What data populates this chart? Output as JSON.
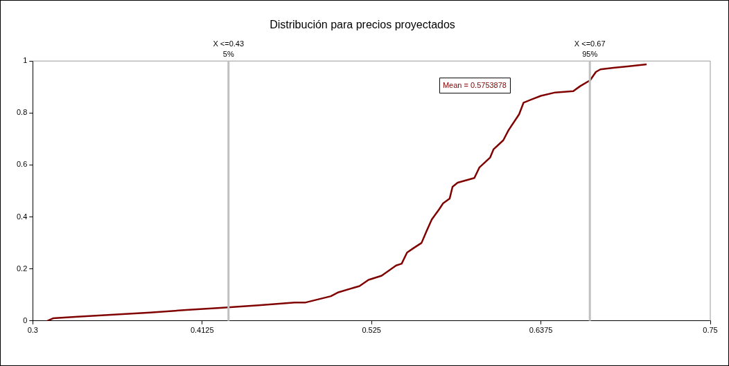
{
  "chart_data": {
    "type": "line",
    "title": "Distribución para precios proyectados",
    "x": [
      0.3096,
      0.3135,
      0.3298,
      0.3538,
      0.3779,
      0.4019,
      0.4245,
      0.45,
      0.474,
      0.4813,
      0.498,
      0.503,
      0.517,
      0.523,
      0.5317,
      0.5413,
      0.545,
      0.5486,
      0.5534,
      0.5582,
      0.5615,
      0.565,
      0.57,
      0.5726,
      0.5769,
      0.5788,
      0.5822,
      0.5933,
      0.5966,
      0.6038,
      0.606,
      0.6125,
      0.616,
      0.623,
      0.626,
      0.6317,
      0.6375,
      0.647,
      0.659,
      0.6635,
      0.6702,
      0.674,
      0.677,
      0.6856,
      0.695,
      0.7077
    ],
    "series": [
      {
        "color": "#800000",
        "values": [
          0,
          0.01,
          0.016,
          0.024,
          0.032,
          0.042,
          0.05,
          0.06,
          0.071,
          0.071,
          0.095,
          0.11,
          0.134,
          0.158,
          0.174,
          0.213,
          0.22,
          0.263,
          0.282,
          0.3,
          0.345,
          0.39,
          0.43,
          0.453,
          0.471,
          0.516,
          0.532,
          0.55,
          0.59,
          0.629,
          0.66,
          0.695,
          0.734,
          0.795,
          0.84,
          0.853,
          0.866,
          0.879,
          0.884,
          0.903,
          0.926,
          0.958,
          0.968,
          0.974,
          0.979,
          0.987
        ]
      }
    ],
    "xlim": [
      0.3,
      0.75
    ],
    "xticks": [
      0.3,
      0.4125,
      0.525,
      0.6375,
      0.75
    ],
    "ylim": [
      0,
      1
    ],
    "yticks": [
      0,
      0.2,
      0.4,
      0.6,
      0.8,
      1
    ],
    "ref_lines": [
      {
        "axis": "x",
        "value": 0.43,
        "label": "X <=0.43\n5%",
        "color": "#c0c0c0"
      },
      {
        "axis": "x",
        "value": 0.67,
        "label": "X <=0.67\n95%",
        "color": "#c0c0c0"
      }
    ],
    "annotations": [
      "Mean = 0.5753878"
    ],
    "grid": false,
    "legend": false,
    "marker": "none",
    "line_style": "solid"
  }
}
